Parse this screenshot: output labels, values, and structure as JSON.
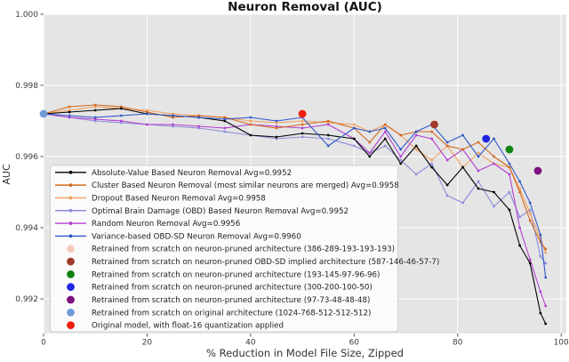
{
  "figure": {
    "background": "#ffffff",
    "plot_background": "#e5e5e5",
    "grid_color": "#ffffff",
    "tick_color": "#555555",
    "text_color": "#3c3c3c",
    "legend_background": "rgba(255,255,255,0.82)",
    "legend_border": "#cfcfcf"
  },
  "chart_data": {
    "type": "line",
    "title": "Neuron Removal (AUC)",
    "xlabel": "% Reduction in Model File Size, Zipped",
    "ylabel": "AUC",
    "xlim": [
      0,
      101
    ],
    "ylim": [
      0.991,
      1.0
    ],
    "grid": true,
    "legend_position": "lower left",
    "x_ticks": [
      {
        "v": 0,
        "label": "0"
      },
      {
        "v": 20,
        "label": "20"
      },
      {
        "v": 40,
        "label": "40"
      },
      {
        "v": 60,
        "label": "60"
      },
      {
        "v": 80,
        "label": "80"
      },
      {
        "v": 100,
        "label": "100"
      }
    ],
    "y_ticks": [
      {
        "v": 1.0,
        "label": "1.000"
      },
      {
        "v": 0.998,
        "label": "0.998"
      },
      {
        "v": 0.996,
        "label": "0.996"
      },
      {
        "v": 0.994,
        "label": "0.994"
      },
      {
        "v": 0.992,
        "label": "0.992"
      }
    ],
    "x": [
      0,
      5,
      10,
      15,
      20,
      25,
      30,
      35,
      40,
      45,
      50,
      55,
      60,
      63,
      66,
      69,
      72,
      75,
      78,
      81,
      84,
      87,
      90,
      92,
      94,
      96,
      97
    ],
    "series": [
      {
        "key": "absolute-value",
        "label": "Absolute-Value Based Neuron Removal Avg=0.9952",
        "avg": 0.9952,
        "color": "#000000",
        "values": [
          0.9972,
          0.99725,
          0.9973,
          0.99735,
          0.9972,
          0.99715,
          0.9971,
          0.997,
          0.9966,
          0.99655,
          0.99665,
          0.9966,
          0.9965,
          0.996,
          0.9965,
          0.9958,
          0.9963,
          0.9957,
          0.9952,
          0.9957,
          0.9951,
          0.995,
          0.9945,
          0.9935,
          0.993,
          0.9916,
          0.9913
        ]
      },
      {
        "key": "cluster",
        "label": "Cluster Based Neuron Removal (most similar neurons are merged) Avg=0.9958",
        "avg": 0.9958,
        "color": "#d2691e",
        "values": [
          0.9972,
          0.9974,
          0.99745,
          0.9974,
          0.99725,
          0.9971,
          0.99715,
          0.9971,
          0.9969,
          0.9968,
          0.9969,
          0.997,
          0.9968,
          0.9964,
          0.9969,
          0.9966,
          0.9967,
          0.9967,
          0.9963,
          0.9962,
          0.9964,
          0.996,
          0.9957,
          0.995,
          0.9942,
          0.9936,
          0.9934
        ]
      },
      {
        "key": "dropout",
        "label": "Dropout Based Neuron Removal Avg=0.9958",
        "avg": 0.9958,
        "color": "#f2a15f",
        "values": [
          0.9972,
          0.9973,
          0.9974,
          0.99735,
          0.9973,
          0.9972,
          0.99715,
          0.9971,
          0.997,
          0.99695,
          0.997,
          0.99695,
          0.9969,
          0.9967,
          0.9969,
          0.9966,
          0.9962,
          0.9959,
          0.9963,
          0.9957,
          0.9961,
          0.9958,
          0.9957,
          0.9951,
          0.9944,
          0.9937,
          0.9933
        ]
      },
      {
        "key": "obd",
        "label": "Optimal Brain Damage (OBD) Based Neuron Removal Avg=0.9952",
        "avg": 0.9952,
        "color": "#8d8ddb",
        "values": [
          0.9972,
          0.9971,
          0.997,
          0.99695,
          0.9969,
          0.99685,
          0.9968,
          0.9967,
          0.9966,
          0.9965,
          0.99655,
          0.9965,
          0.9963,
          0.9961,
          0.9963,
          0.9959,
          0.9955,
          0.9958,
          0.9949,
          0.9947,
          0.9953,
          0.9946,
          0.995,
          0.9943,
          0.9945,
          0.9932,
          0.993
        ]
      },
      {
        "key": "random",
        "label": "Random Neuron Removal Avg=0.9956",
        "avg": 0.9956,
        "color": "#b13fd1",
        "values": [
          0.9972,
          0.9971,
          0.99705,
          0.997,
          0.9969,
          0.9969,
          0.99685,
          0.9968,
          0.9969,
          0.99685,
          0.9968,
          0.9969,
          0.9965,
          0.9961,
          0.9967,
          0.996,
          0.9966,
          0.9965,
          0.9959,
          0.9962,
          0.9956,
          0.9958,
          0.9955,
          0.994,
          0.9931,
          0.9922,
          0.9918
        ]
      },
      {
        "key": "variance-obd-sd",
        "label": "Variance-based OBD-SD Neuron Removal Avg=0.9960",
        "avg": 0.996,
        "color": "#3158c9",
        "values": [
          0.9972,
          0.99715,
          0.9971,
          0.99715,
          0.9972,
          0.99715,
          0.9971,
          0.99705,
          0.9971,
          0.997,
          0.9971,
          0.9963,
          0.9968,
          0.9967,
          0.9968,
          0.9962,
          0.9967,
          0.9969,
          0.9964,
          0.9966,
          0.996,
          0.9965,
          0.9958,
          0.9953,
          0.9947,
          0.9938,
          0.9926
        ]
      }
    ],
    "points": [
      {
        "key": "retrained-386",
        "label": "Retrained from scratch on neuron-pruned architecture (386-289-193-193-193)",
        "color": "#f6c9bd",
        "x": 50,
        "y": 0.9972
      },
      {
        "key": "retrained-obd-sd-587",
        "label": "Retrained from scratch on neuron-pruned OBD-SD implied architecture (587-146-46-57-7)",
        "color": "#a23b2a",
        "x": 75.5,
        "y": 0.9969
      },
      {
        "key": "retrained-193",
        "label": "Retrained from scratch on neuron-pruned architecture (193-145-97-96-96)",
        "color": "#108212",
        "x": 90,
        "y": 0.9962
      },
      {
        "key": "retrained-300",
        "label": "Retrained from scratch on neuron-pruned architecture (300-200-100-50)",
        "color": "#1f25e3",
        "x": 85.5,
        "y": 0.9965
      },
      {
        "key": "retrained-97",
        "label": "Retrained from scratch on neuron-pruned architecture (97-73-48-48-48)",
        "color": "#7e117e",
        "x": 95.5,
        "y": 0.9956
      },
      {
        "key": "retrained-original-1024",
        "label": "Retrained from scratch on original architecture (1024-768-512-512-512)",
        "color": "#6e9bd8",
        "x": 0,
        "y": 0.9972
      },
      {
        "key": "original-float16",
        "label": "Original model, with float-16 quantization applied",
        "color": "#ee1d0d",
        "x": 50,
        "y": 0.9972
      }
    ]
  }
}
